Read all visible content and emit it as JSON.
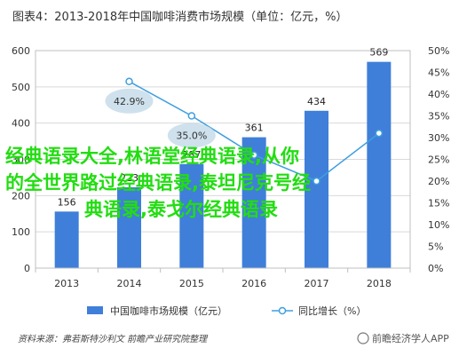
{
  "chart_data": {
    "type": "bar",
    "title": "图表4：2013-2018年中国咖啡消费市场规模（单位：亿元，%）",
    "categories": [
      "2013",
      "2014",
      "2015",
      "2016",
      "2017",
      "2018"
    ],
    "series": [
      {
        "name": "中国咖啡市场规模（亿元）",
        "type": "bar",
        "axis": "left",
        "values": [
          156,
          223,
          287,
          361,
          434,
          569
        ],
        "labels": [
          "156",
          "223",
          "287",
          "361",
          "434",
          "569"
        ]
      },
      {
        "name": "同比增长（%）",
        "type": "line",
        "axis": "right",
        "values": [
          null,
          42.9,
          35.0,
          26.0,
          20.0,
          31.0
        ],
        "labels": [
          "",
          "42.9%",
          "35.0%",
          "",
          "",
          ""
        ]
      }
    ],
    "ylim_left": [
      0,
      600
    ],
    "yticks_left": [
      "0",
      "100",
      "200",
      "300",
      "400",
      "500",
      "600"
    ],
    "ylim_right": [
      0,
      50
    ],
    "yticks_right": [
      "0%",
      "5%",
      "10%",
      "15%",
      "20%",
      "25%",
      "30%",
      "35%",
      "40%",
      "45%",
      "50%"
    ],
    "grid": true,
    "legend_position": "bottom",
    "colors": {
      "bar": "#3f7fd9",
      "line": "#3f9fdf",
      "marker_face": "#ffffff",
      "bubble": "#c6dcea"
    }
  },
  "source": "资料来源：弗若斯特沙利文 前瞻产业研究院整理",
  "brand": "前瞻经济学人APP",
  "watermark": {
    "lines": [
      "经典语录大全,林语堂经典语录,从你",
      "的全世界路过经典语录,泰坦尼克号经",
      "典语录,泰戈尔经典语录"
    ]
  }
}
